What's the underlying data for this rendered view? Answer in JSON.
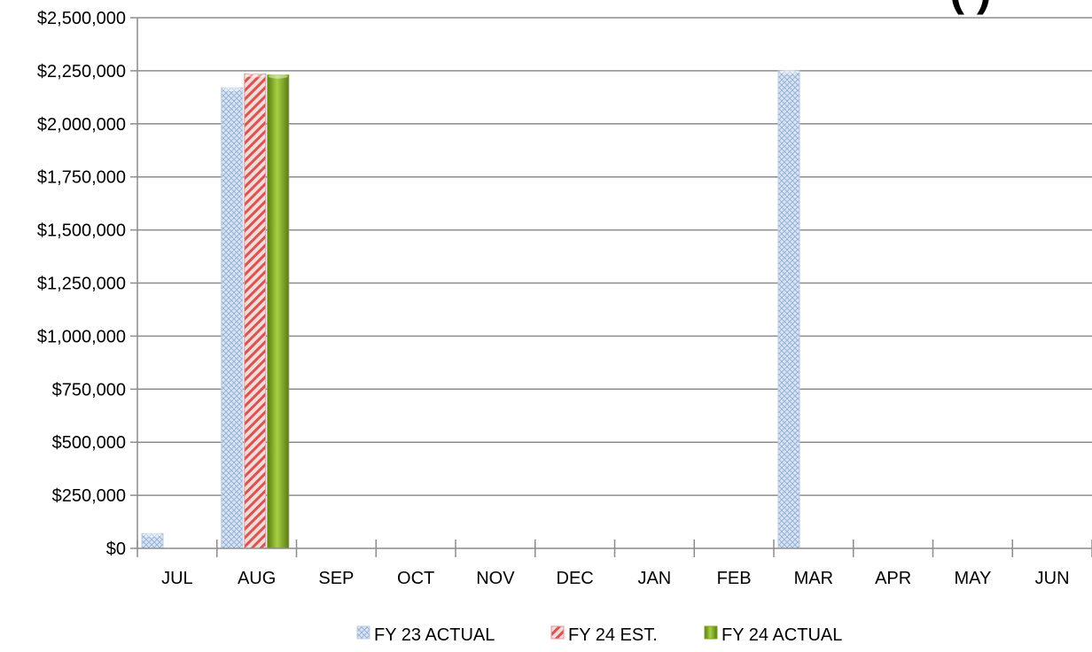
{
  "chart_data": {
    "type": "bar",
    "title": "",
    "xlabel": "",
    "ylabel": "",
    "categories": [
      "JUL",
      "AUG",
      "SEP",
      "OCT",
      "NOV",
      "DEC",
      "JAN",
      "FEB",
      "MAR",
      "APR",
      "MAY",
      "JUN"
    ],
    "y_ticks": [
      "$0",
      "$250,000",
      "$500,000",
      "$750,000",
      "$1,000,000",
      "$1,250,000",
      "$1,500,000",
      "$1,750,000",
      "$2,000,000",
      "$2,250,000",
      "$2,500,000"
    ],
    "ylim": [
      0,
      2500000
    ],
    "grid": true,
    "legend_position": "bottom",
    "series": [
      {
        "name": "FY 23 ACTUAL",
        "color": "#b8cce4",
        "values": [
          70000,
          2170000,
          null,
          null,
          null,
          null,
          null,
          null,
          2250000,
          null,
          null,
          null
        ]
      },
      {
        "name": "FY 24 EST.",
        "color": "#e6999a",
        "values": [
          null,
          2235000,
          null,
          null,
          null,
          null,
          null,
          null,
          null,
          null,
          null,
          null
        ]
      },
      {
        "name": "FY 24 ACTUAL",
        "color": "#7fa323",
        "values": [
          null,
          2230000,
          null,
          null,
          null,
          null,
          null,
          null,
          null,
          null,
          null,
          null
        ]
      }
    ],
    "partial_title_visible": "(  )"
  }
}
